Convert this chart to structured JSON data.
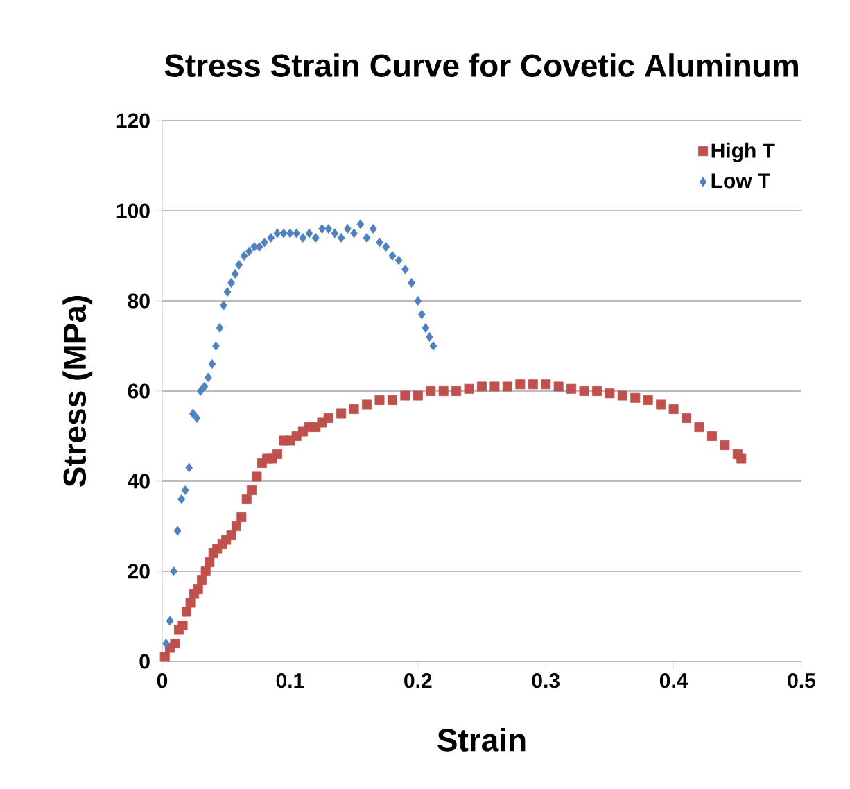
{
  "chart_data": {
    "type": "scatter",
    "title": "Stress Strain Curve for Covetic Aluminum",
    "xlabel": "Strain",
    "ylabel": "Stress (MPa)",
    "xlim": [
      0,
      0.5
    ],
    "xticks": [
      0,
      0.1,
      0.2,
      0.3,
      0.4,
      0.5
    ],
    "ylim": [
      0,
      120
    ],
    "yticks": [
      0,
      20,
      40,
      60,
      80,
      100,
      120
    ],
    "grid": "y",
    "legend": "top right",
    "series": [
      {
        "name": "High T",
        "color": "#c0504d",
        "marker": "square",
        "x": [
          0.002,
          0.006,
          0.01,
          0.013,
          0.016,
          0.019,
          0.022,
          0.025,
          0.028,
          0.031,
          0.034,
          0.037,
          0.04,
          0.043,
          0.047,
          0.05,
          0.054,
          0.058,
          0.062,
          0.066,
          0.07,
          0.074,
          0.078,
          0.082,
          0.086,
          0.09,
          0.095,
          0.1,
          0.105,
          0.11,
          0.115,
          0.12,
          0.125,
          0.13,
          0.14,
          0.15,
          0.16,
          0.17,
          0.18,
          0.19,
          0.2,
          0.21,
          0.22,
          0.23,
          0.24,
          0.25,
          0.26,
          0.27,
          0.28,
          0.29,
          0.3,
          0.31,
          0.32,
          0.33,
          0.34,
          0.35,
          0.36,
          0.37,
          0.38,
          0.39,
          0.4,
          0.41,
          0.42,
          0.43,
          0.44,
          0.45,
          0.453
        ],
        "values": [
          1,
          3,
          4,
          7,
          8,
          11,
          13,
          15,
          16,
          18,
          20,
          22,
          24,
          25,
          26,
          27,
          28,
          30,
          32,
          36,
          38,
          41,
          44,
          45,
          45,
          46,
          49,
          49,
          50,
          51,
          52,
          52,
          53,
          54,
          55,
          56,
          57,
          58,
          58,
          59,
          59,
          60,
          60,
          60,
          60.5,
          61,
          61,
          61,
          61.5,
          61.5,
          61.5,
          61,
          60.5,
          60,
          60,
          59.5,
          59,
          58.5,
          58,
          57,
          56,
          54,
          52,
          50,
          48,
          46,
          45
        ]
      },
      {
        "name": "Low T",
        "color": "#4f81bd",
        "marker": "diamond",
        "x": [
          0.003,
          0.006,
          0.009,
          0.012,
          0.015,
          0.018,
          0.021,
          0.024,
          0.027,
          0.03,
          0.033,
          0.036,
          0.039,
          0.042,
          0.045,
          0.048,
          0.051,
          0.054,
          0.057,
          0.06,
          0.064,
          0.068,
          0.072,
          0.076,
          0.08,
          0.085,
          0.09,
          0.095,
          0.1,
          0.105,
          0.11,
          0.115,
          0.12,
          0.125,
          0.13,
          0.135,
          0.14,
          0.145,
          0.15,
          0.155,
          0.16,
          0.165,
          0.17,
          0.175,
          0.18,
          0.185,
          0.19,
          0.195,
          0.2,
          0.203,
          0.206,
          0.209,
          0.212
        ],
        "values": [
          4,
          9,
          20,
          29,
          36,
          38,
          43,
          55,
          54,
          60,
          61,
          63,
          66,
          70,
          74,
          79,
          82,
          84,
          86,
          88,
          90,
          91,
          92,
          92,
          93,
          94,
          95,
          95,
          95,
          95,
          94,
          95,
          94,
          96,
          96,
          95,
          94,
          96,
          95,
          97,
          94,
          96,
          93,
          92,
          90,
          89,
          87,
          84,
          80,
          77,
          74,
          72,
          70
        ]
      }
    ]
  }
}
